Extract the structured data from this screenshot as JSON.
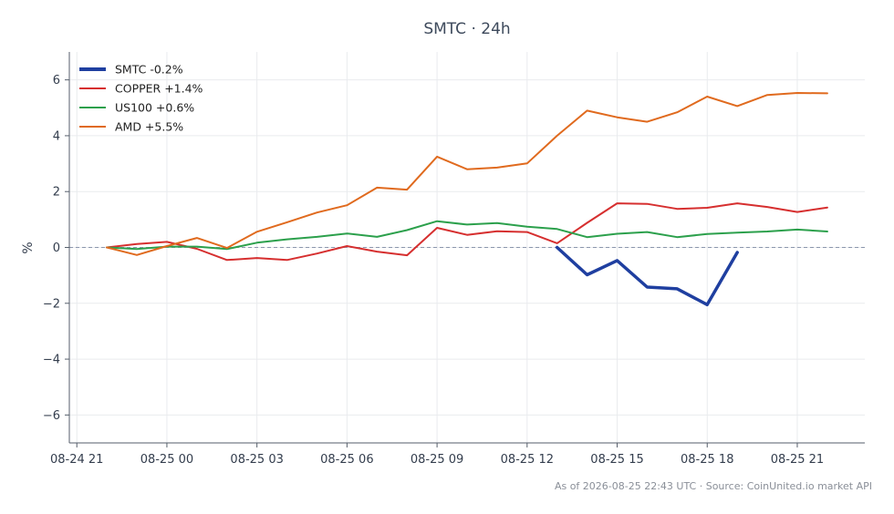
{
  "chart_data": {
    "type": "line",
    "title": "SMTC · 24h",
    "xlabel": "",
    "ylabel": "%",
    "ylim": [
      -7,
      7
    ],
    "xlim": [
      "08-24 20:45",
      "08-25 23:15"
    ],
    "yticks": [
      -6,
      -4,
      -2,
      0,
      2,
      4,
      6
    ],
    "ytick_labels": [
      "−6",
      "−4",
      "−2",
      "0",
      "2",
      "4",
      "6"
    ],
    "xticks": [
      "08-24 21:00",
      "08-25 00:00",
      "08-25 03:00",
      "08-25 06:00",
      "08-25 09:00",
      "08-25 12:00",
      "08-25 15:00",
      "08-25 18:00",
      "08-25 21:00"
    ],
    "xtick_labels": [
      "08-24 21",
      "08-25 00",
      "08-25 03",
      "08-25 06",
      "08-25 09",
      "08-25 12",
      "08-25 15",
      "08-25 18",
      "08-25 21"
    ],
    "x": [
      "08-24 22:00",
      "08-24 23:00",
      "08-25 00:00",
      "08-25 01:00",
      "08-25 02:00",
      "08-25 03:00",
      "08-25 04:00",
      "08-25 05:00",
      "08-25 06:00",
      "08-25 07:00",
      "08-25 08:00",
      "08-25 09:00",
      "08-25 10:00",
      "08-25 11:00",
      "08-25 12:00",
      "08-25 13:00",
      "08-25 14:00",
      "08-25 15:00",
      "08-25 16:00",
      "08-25 17:00",
      "08-25 18:00",
      "08-25 19:00",
      "08-25 20:00",
      "08-25 21:00",
      "08-25 22:00"
    ],
    "grid": true,
    "zero_line": true,
    "legend_position": "top-left",
    "series": [
      {
        "name": "SMTC -0.2%",
        "color": "#1f3fa0",
        "values": [
          null,
          null,
          null,
          null,
          null,
          null,
          null,
          null,
          null,
          null,
          null,
          null,
          null,
          null,
          null,
          0.0,
          -0.98,
          -0.47,
          -1.42,
          -1.48,
          -2.05,
          -0.18,
          null,
          null,
          null
        ]
      },
      {
        "name": "COPPER +1.4%",
        "color": "#d62f2f",
        "values": [
          0.0,
          0.12,
          0.2,
          -0.05,
          -0.45,
          -0.38,
          -0.45,
          -0.22,
          0.05,
          -0.15,
          -0.28,
          0.7,
          0.45,
          0.58,
          0.55,
          0.15,
          0.88,
          1.58,
          1.56,
          1.38,
          1.42,
          1.58,
          1.45,
          1.27,
          1.43
        ]
      },
      {
        "name": "US100 +0.6%",
        "color": "#2ca04c",
        "values": [
          0.0,
          -0.06,
          0.03,
          0.03,
          -0.06,
          0.17,
          0.29,
          0.38,
          0.5,
          0.38,
          0.62,
          0.94,
          0.82,
          0.87,
          0.74,
          0.66,
          0.37,
          0.49,
          0.55,
          0.37,
          0.48,
          0.53,
          0.57,
          0.64,
          0.57
        ]
      },
      {
        "name": "AMD +5.5%",
        "color": "#e06a1e",
        "values": [
          0.0,
          -0.27,
          0.05,
          0.34,
          -0.02,
          0.56,
          0.9,
          1.25,
          1.51,
          2.14,
          2.07,
          3.25,
          2.8,
          2.86,
          3.01,
          4.0,
          4.9,
          4.66,
          4.5,
          4.84,
          5.4,
          5.06,
          5.46,
          5.53,
          5.52
        ]
      }
    ]
  },
  "footer": "As of 2026-08-25 22:43 UTC · Source: CoinUnited.io market API"
}
